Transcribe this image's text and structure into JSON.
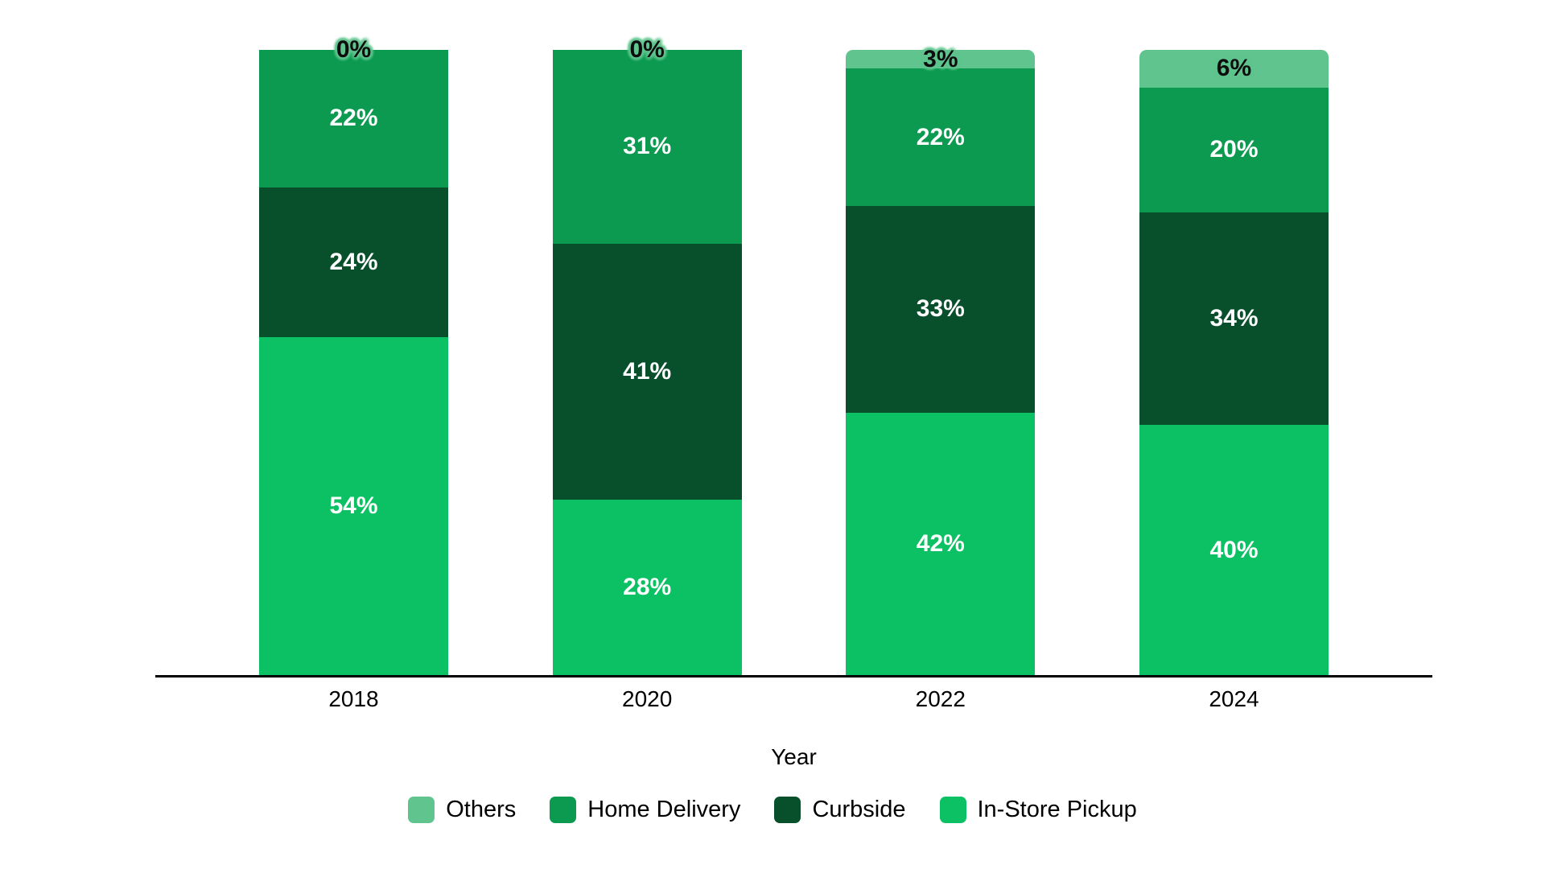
{
  "chart_data": {
    "type": "bar",
    "stacked": true,
    "orientation": "vertical",
    "categories": [
      "2018",
      "2020",
      "2022",
      "2024"
    ],
    "series": [
      {
        "name": "Others",
        "color": "#60C48E",
        "values": [
          0,
          0,
          3,
          6
        ],
        "label_style": "dark"
      },
      {
        "name": "Home Delivery",
        "color": "#0B9A4F",
        "values": [
          22,
          31,
          22,
          20
        ],
        "label_style": "light"
      },
      {
        "name": "Curbside",
        "color": "#07502B",
        "values": [
          24,
          41,
          33,
          34
        ],
        "label_style": "light"
      },
      {
        "name": "In-Store Pickup",
        "color": "#0CC163",
        "values": [
          54,
          28,
          42,
          40
        ],
        "label_style": "light"
      }
    ],
    "title": "",
    "xlabel": "Year",
    "ylabel": "",
    "ylim": [
      0,
      100
    ],
    "value_suffix": "%",
    "grid": "off",
    "legend_position": "bottom",
    "axis_line_color": "#000000",
    "background_color": "#FFFFFF"
  }
}
